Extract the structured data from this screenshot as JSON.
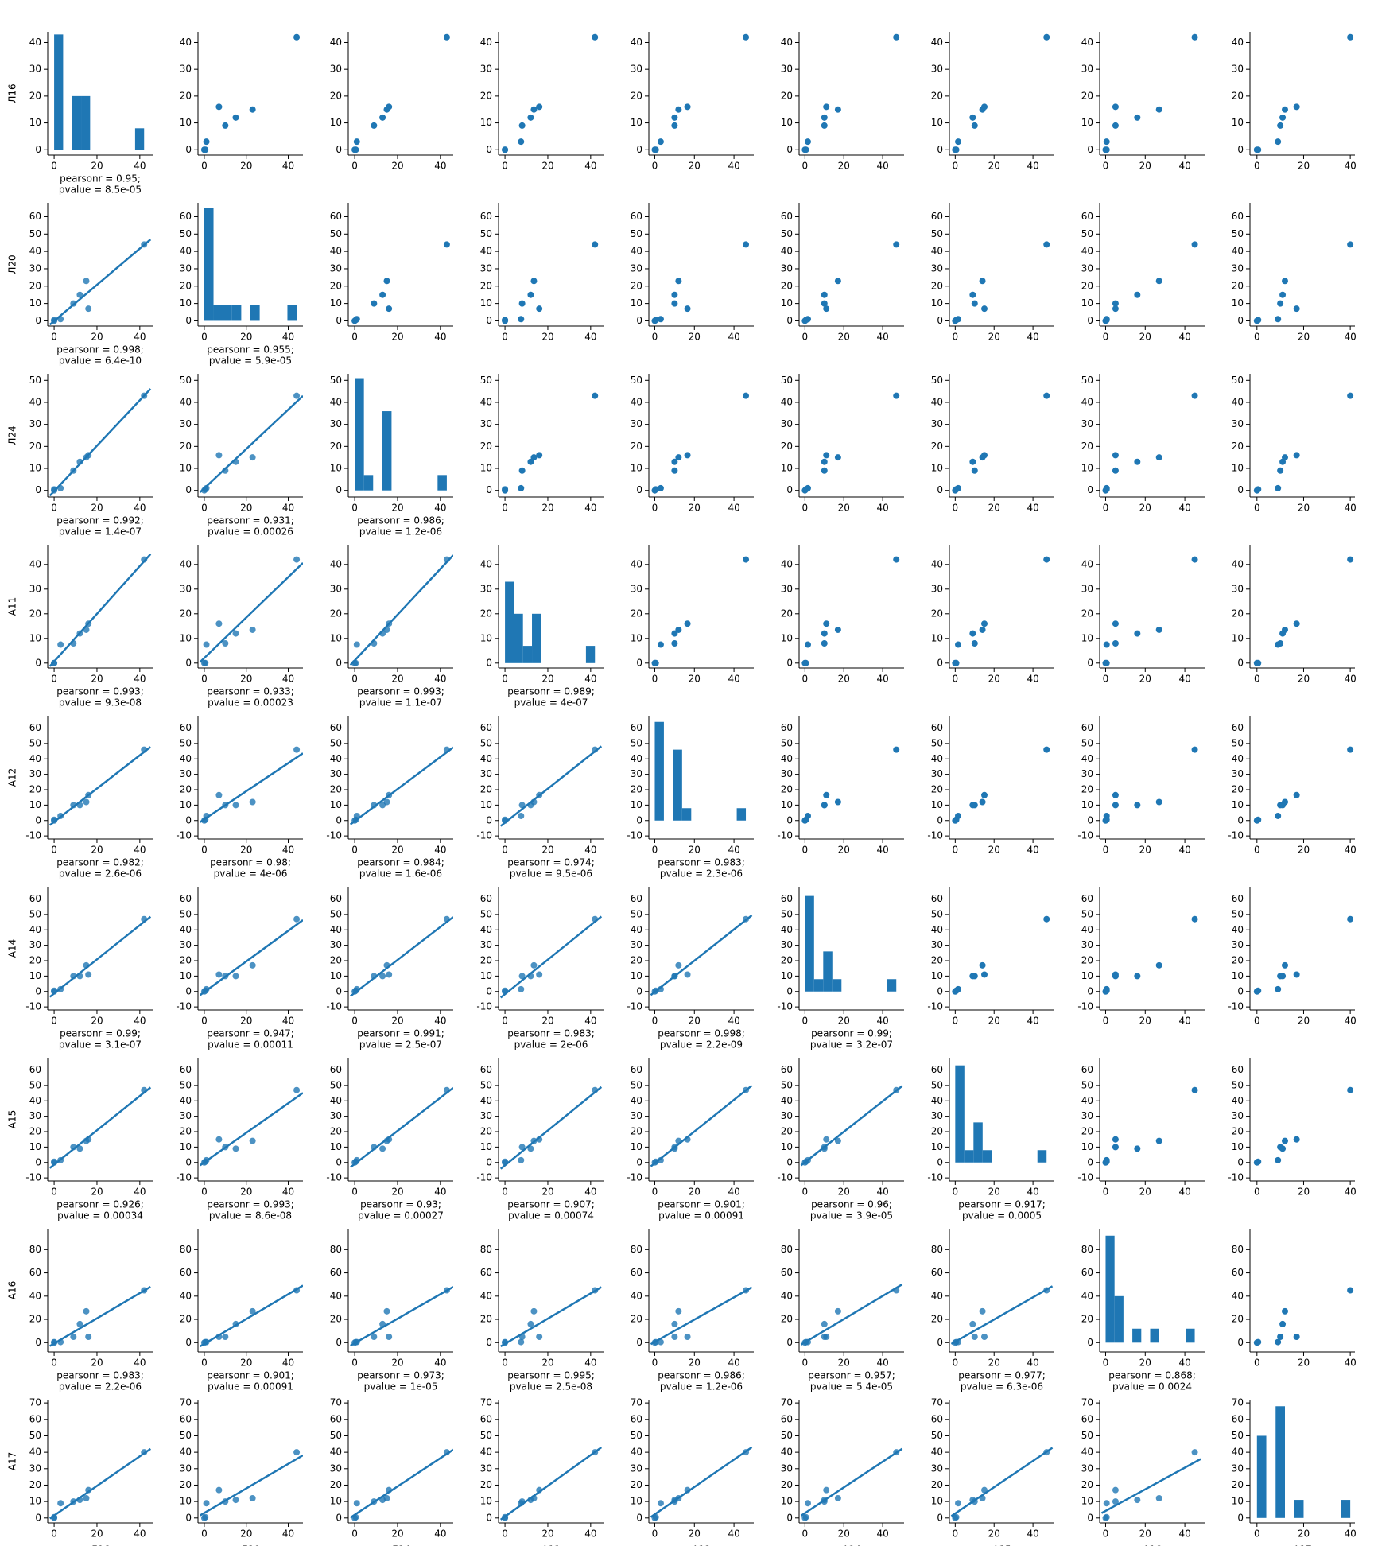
{
  "chart_data": {
    "type": "pairplot",
    "color": "#1f77b4",
    "variables": [
      {
        "name": "Л16",
        "values": [
          0,
          0,
          3,
          9,
          12,
          15,
          16,
          42
        ],
        "xlim": [
          -3,
          46
        ],
        "xticks": [
          0,
          20,
          40
        ],
        "ylim": [
          -2,
          44
        ],
        "yticks": [
          0,
          10,
          20,
          30,
          40
        ],
        "hist": {
          "bins": [
            0,
            4.2,
            8.4,
            12.6,
            16.8,
            21,
            25.2,
            29.4,
            33.6,
            37.8,
            42
          ],
          "counts": [
            43,
            0,
            20,
            20,
            0,
            0,
            0,
            0,
            0,
            8
          ]
        },
        "pearson": []
      },
      {
        "name": "Л20",
        "values": [
          0,
          0.5,
          1,
          10,
          15,
          23,
          7,
          44
        ],
        "xlim": [
          -3,
          47
        ],
        "xticks": [
          0,
          20,
          40
        ],
        "ylim": [
          -3,
          68
        ],
        "yticks": [
          0,
          10,
          20,
          30,
          40,
          50,
          60
        ],
        "hist": {
          "bins": [
            0,
            4.4,
            8.8,
            13.2,
            17.6,
            22,
            26.4,
            30.8,
            35.2,
            39.6,
            44
          ],
          "counts": [
            65,
            9,
            9,
            9,
            0,
            9,
            0,
            0,
            0,
            9
          ]
        },
        "pearson": [
          {
            "r": "pearsonr = 0.95;",
            "p": "pvalue = 8.5e-05"
          }
        ]
      },
      {
        "name": "Л24",
        "values": [
          0,
          0.5,
          1,
          9,
          13,
          15,
          16,
          43
        ],
        "xlim": [
          -3,
          46
        ],
        "xticks": [
          0,
          20,
          40
        ],
        "ylim": [
          -3,
          53
        ],
        "yticks": [
          0,
          10,
          20,
          30,
          40,
          50
        ],
        "hist": {
          "bins": [
            0,
            4.3,
            8.6,
            12.9,
            17.2,
            21.5,
            25.8,
            30.1,
            34.4,
            38.7,
            43
          ],
          "counts": [
            51,
            7,
            0,
            36,
            0,
            0,
            0,
            0,
            0,
            7
          ]
        },
        "pearson": [
          {
            "r": "pearsonr = 0.998;",
            "p": "pvalue = 6.4e-10"
          },
          {
            "r": "pearsonr = 0.955;",
            "p": "pvalue = 5.9e-05"
          }
        ]
      },
      {
        "name": "А11",
        "values": [
          0,
          0,
          7.5,
          8,
          12,
          13.5,
          16,
          42
        ],
        "xlim": [
          -3,
          46
        ],
        "xticks": [
          0,
          20,
          40
        ],
        "ylim": [
          -2,
          48
        ],
        "yticks": [
          0,
          10,
          20,
          30,
          40
        ],
        "hist": {
          "bins": [
            0,
            4.2,
            8.4,
            12.6,
            16.8,
            21,
            25.2,
            29.4,
            33.6,
            37.8,
            42
          ],
          "counts": [
            33,
            20,
            7,
            20,
            0,
            0,
            0,
            0,
            0,
            7
          ]
        },
        "pearson": [
          {
            "r": "pearsonr = 0.992;",
            "p": "pvalue = 1.4e-07"
          },
          {
            "r": "pearsonr = 0.931;",
            "p": "pvalue = 0.00026"
          },
          {
            "r": "pearsonr = 0.986;",
            "p": "pvalue = 1.2e-06"
          }
        ]
      },
      {
        "name": "А12",
        "values": [
          0,
          0.5,
          3,
          10,
          10,
          12,
          16.5,
          46
        ],
        "xlim": [
          -3,
          50
        ],
        "xticks": [
          0,
          20,
          40
        ],
        "ylim": [
          -12,
          68
        ],
        "yticks": [
          -10,
          0,
          10,
          20,
          30,
          40,
          50,
          60
        ],
        "hist": {
          "bins": [
            0,
            4.6,
            9.2,
            13.8,
            18.4,
            23,
            27.6,
            32.2,
            36.8,
            41.4,
            46
          ],
          "counts": [
            64,
            0,
            46,
            8,
            0,
            0,
            0,
            0,
            0,
            8
          ]
        },
        "pearson": [
          {
            "r": "pearsonr = 0.993;",
            "p": "pvalue = 9.3e-08"
          },
          {
            "r": "pearsonr = 0.933;",
            "p": "pvalue = 0.00023"
          },
          {
            "r": "pearsonr = 0.993;",
            "p": "pvalue = 1.1e-07"
          },
          {
            "r": "pearsonr = 0.989;",
            "p": "pvalue = 4e-07"
          }
        ]
      },
      {
        "name": "А14",
        "values": [
          0,
          0.5,
          1.5,
          10,
          10,
          17,
          11,
          47
        ],
        "xlim": [
          -3,
          51
        ],
        "xticks": [
          0,
          20,
          40
        ],
        "ylim": [
          -12,
          68
        ],
        "yticks": [
          -10,
          0,
          10,
          20,
          30,
          40,
          50,
          60
        ],
        "hist": {
          "bins": [
            0,
            4.7,
            9.4,
            14.1,
            18.8,
            23.5,
            28.2,
            32.9,
            37.6,
            42.3,
            47
          ],
          "counts": [
            62,
            8,
            26,
            8,
            0,
            0,
            0,
            0,
            0,
            8
          ]
        },
        "pearson": [
          {
            "r": "pearsonr = 0.982;",
            "p": "pvalue = 2.6e-06"
          },
          {
            "r": "pearsonr = 0.98;",
            "p": "pvalue = 4e-06"
          },
          {
            "r": "pearsonr = 0.984;",
            "p": "pvalue = 1.6e-06"
          },
          {
            "r": "pearsonr = 0.974;",
            "p": "pvalue = 9.5e-06"
          },
          {
            "r": "pearsonr = 0.983;",
            "p": "pvalue = 2.3e-06"
          }
        ]
      },
      {
        "name": "А15",
        "values": [
          0,
          0.5,
          1.5,
          10,
          9,
          14,
          15,
          47
        ],
        "xlim": [
          -3,
          51
        ],
        "xticks": [
          0,
          20,
          40
        ],
        "ylim": [
          -12,
          68
        ],
        "yticks": [
          -10,
          0,
          10,
          20,
          30,
          40,
          50,
          60
        ],
        "hist": {
          "bins": [
            0,
            4.7,
            9.4,
            14.1,
            18.8,
            23.5,
            28.2,
            32.9,
            37.6,
            42.3,
            47
          ],
          "counts": [
            63,
            8,
            26,
            8,
            0,
            0,
            0,
            0,
            0,
            8
          ]
        },
        "pearson": [
          {
            "r": "pearsonr = 0.99;",
            "p": "pvalue = 3.1e-07"
          },
          {
            "r": "pearsonr = 0.947;",
            "p": "pvalue = 0.00011"
          },
          {
            "r": "pearsonr = 0.991;",
            "p": "pvalue = 2.5e-07"
          },
          {
            "r": "pearsonr = 0.983;",
            "p": "pvalue = 2e-06"
          },
          {
            "r": "pearsonr = 0.998;",
            "p": "pvalue = 2.2e-09"
          },
          {
            "r": "pearsonr = 0.99;",
            "p": "pvalue = 3.2e-07"
          }
        ]
      },
      {
        "name": "А16",
        "values": [
          0,
          0.5,
          0.5,
          5,
          16,
          27,
          5,
          45
        ],
        "xlim": [
          -3,
          50
        ],
        "xticks": [
          0,
          20,
          40
        ],
        "ylim": [
          -8,
          98
        ],
        "yticks": [
          0,
          20,
          40,
          60,
          80
        ],
        "hist": {
          "bins": [
            0,
            4.5,
            9,
            13.5,
            18,
            22.5,
            27,
            31.5,
            36,
            40.5,
            45
          ],
          "counts": [
            92,
            40,
            0,
            12,
            0,
            12,
            0,
            0,
            0,
            12
          ]
        },
        "pearson": [
          {
            "r": "pearsonr = 0.926;",
            "p": "pvalue = 0.00034"
          },
          {
            "r": "pearsonr = 0.993;",
            "p": "pvalue = 8.6e-08"
          },
          {
            "r": "pearsonr = 0.93;",
            "p": "pvalue = 0.00027"
          },
          {
            "r": "pearsonr = 0.907;",
            "p": "pvalue = 0.00074"
          },
          {
            "r": "pearsonr = 0.901;",
            "p": "pvalue = 0.00091"
          },
          {
            "r": "pearsonr = 0.96;",
            "p": "pvalue = 3.9e-05"
          },
          {
            "r": "pearsonr = 0.917;",
            "p": "pvalue = 0.0005"
          }
        ]
      },
      {
        "name": "А17",
        "values": [
          0,
          0.5,
          9,
          10,
          11,
          12,
          17,
          40
        ],
        "xlim": [
          -3,
          42
        ],
        "xticks": [
          0,
          20,
          40
        ],
        "ylim": [
          -3,
          72
        ],
        "yticks": [
          0,
          10,
          20,
          30,
          40,
          50,
          60,
          70
        ],
        "hist": {
          "bins": [
            0,
            4,
            8,
            12,
            16,
            20,
            24,
            28,
            32,
            36,
            40
          ],
          "counts": [
            50,
            0,
            68,
            0,
            11,
            0,
            0,
            0,
            0,
            11
          ]
        },
        "pearson": [
          {
            "r": "pearsonr = 0.983;",
            "p": "pvalue = 2.2e-06"
          },
          {
            "r": "pearsonr = 0.901;",
            "p": "pvalue = 0.00091"
          },
          {
            "r": "pearsonr = 0.973;",
            "p": "pvalue = 1e-05"
          },
          {
            "r": "pearsonr = 0.995;",
            "p": "pvalue = 2.5e-08"
          },
          {
            "r": "pearsonr = 0.986;",
            "p": "pvalue = 1.2e-06"
          },
          {
            "r": "pearsonr = 0.957;",
            "p": "pvalue = 5.4e-05"
          },
          {
            "r": "pearsonr = 0.977;",
            "p": "pvalue = 6.3e-06"
          },
          {
            "r": "pearsonr = 0.868;",
            "p": "pvalue = 0.0024"
          }
        ]
      }
    ]
  }
}
